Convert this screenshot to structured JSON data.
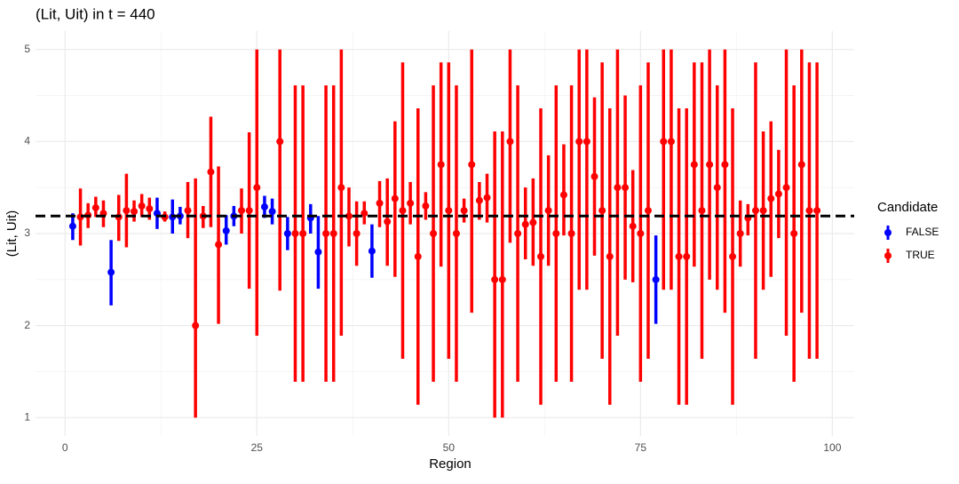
{
  "chart_data": {
    "type": "errorbar",
    "title": "(Lit, Uit) in t = 440",
    "x_label": "Region",
    "y_label": "(Lit, Uit)",
    "legend_title": "Candidate",
    "legend_position": "right",
    "grid": true,
    "xlim": [
      -3.85,
      102.85
    ],
    "ylim": [
      0.8,
      5.2
    ],
    "xticks": [
      0,
      25,
      50,
      75,
      100
    ],
    "yticks": [
      1,
      2,
      3,
      4,
      5
    ],
    "hline": 3.19,
    "series": [
      {
        "name": "FALSE",
        "color": "#0000ff",
        "x": [
          1,
          6,
          12,
          14,
          15,
          21,
          22,
          26,
          27,
          29,
          32,
          33,
          40,
          77
        ],
        "values": [
          3.08,
          2.58,
          3.22,
          3.18,
          3.19,
          3.03,
          3.19,
          3.29,
          3.24,
          3.0,
          3.17,
          2.8,
          2.81,
          2.5
        ],
        "lower": [
          2.93,
          2.22,
          3.05,
          3.0,
          3.1,
          2.88,
          3.08,
          3.17,
          3.1,
          2.82,
          3.0,
          2.4,
          2.52,
          2.02
        ],
        "upper": [
          3.22,
          2.93,
          3.39,
          3.37,
          3.29,
          3.2,
          3.3,
          3.41,
          3.38,
          3.18,
          3.32,
          3.19,
          3.1,
          2.98
        ]
      },
      {
        "name": "TRUE",
        "color": "#ff0000",
        "x": [
          2,
          3,
          4,
          5,
          7,
          8,
          9,
          10,
          11,
          13,
          16,
          17,
          18,
          19,
          20,
          23,
          24,
          25,
          28,
          30,
          31,
          34,
          35,
          36,
          37,
          38,
          39,
          41,
          42,
          43,
          44,
          45,
          46,
          47,
          48,
          49,
          50,
          51,
          52,
          53,
          54,
          55,
          56,
          57,
          58,
          59,
          60,
          61,
          62,
          63,
          64,
          65,
          66,
          67,
          68,
          69,
          70,
          71,
          72,
          73,
          74,
          75,
          76,
          78,
          79,
          80,
          81,
          82,
          83,
          84,
          85,
          86,
          87,
          88,
          89,
          90,
          91,
          92,
          93,
          94,
          95,
          96,
          97,
          98
        ],
        "values": [
          3.18,
          3.2,
          3.28,
          3.22,
          3.18,
          3.25,
          3.24,
          3.3,
          3.27,
          3.18,
          3.25,
          2.0,
          3.19,
          3.67,
          2.88,
          3.25,
          3.25,
          3.5,
          4.0,
          3.0,
          3.0,
          3.0,
          3.0,
          3.5,
          3.19,
          3.0,
          3.22,
          3.33,
          3.13,
          3.38,
          3.25,
          3.33,
          2.75,
          3.3,
          3.0,
          3.75,
          3.25,
          3.0,
          3.25,
          3.75,
          3.36,
          3.39,
          2.5,
          2.5,
          4.0,
          3.0,
          3.1,
          3.12,
          2.75,
          3.25,
          3.0,
          3.42,
          3.0,
          4.0,
          4.0,
          3.62,
          3.25,
          2.75,
          3.5,
          3.5,
          3.08,
          3.0,
          3.25,
          4.0,
          4.0,
          2.75,
          2.75,
          3.75,
          3.25,
          3.75,
          3.5,
          3.75,
          2.75,
          3.0,
          3.17,
          3.25,
          3.25,
          3.38,
          3.43,
          3.5,
          3.0,
          3.75,
          3.25,
          3.25
        ],
        "lower": [
          2.87,
          3.06,
          3.18,
          3.07,
          2.92,
          2.85,
          3.13,
          3.18,
          3.15,
          3.13,
          2.95,
          1.0,
          3.06,
          3.07,
          2.02,
          3.0,
          2.4,
          1.89,
          2.38,
          1.39,
          1.39,
          1.39,
          1.39,
          1.89,
          2.86,
          2.65,
          3.1,
          3.07,
          2.65,
          2.53,
          1.64,
          3.1,
          1.14,
          3.15,
          1.39,
          2.64,
          1.64,
          1.39,
          3.12,
          2.14,
          3.15,
          3.12,
          1.0,
          1.0,
          2.9,
          1.39,
          2.72,
          2.65,
          1.14,
          2.65,
          1.39,
          2.98,
          1.39,
          2.39,
          2.39,
          2.76,
          1.64,
          1.14,
          1.89,
          2.5,
          2.47,
          1.39,
          1.64,
          2.39,
          2.39,
          1.14,
          1.14,
          2.64,
          1.64,
          2.5,
          2.39,
          2.14,
          1.14,
          2.64,
          2.98,
          1.64,
          2.39,
          2.53,
          2.95,
          1.89,
          1.39,
          2.14,
          1.64,
          1.64
        ],
        "upper": [
          3.49,
          3.33,
          3.4,
          3.36,
          3.42,
          3.65,
          3.36,
          3.43,
          3.39,
          3.24,
          3.56,
          3.6,
          3.3,
          4.27,
          3.73,
          3.49,
          4.1,
          5.0,
          5.0,
          4.61,
          4.61,
          4.61,
          4.61,
          5.0,
          3.5,
          3.35,
          3.35,
          3.57,
          3.6,
          4.22,
          4.86,
          3.56,
          4.36,
          3.45,
          4.61,
          4.86,
          4.86,
          4.61,
          3.38,
          5.0,
          3.56,
          3.65,
          4.11,
          4.11,
          5.0,
          4.61,
          3.5,
          3.6,
          4.36,
          3.85,
          4.61,
          3.97,
          4.61,
          5.0,
          5.0,
          4.48,
          4.86,
          4.36,
          5.0,
          4.5,
          3.69,
          4.61,
          4.86,
          5.0,
          5.0,
          4.36,
          4.36,
          4.86,
          4.86,
          5.0,
          4.61,
          5.0,
          4.36,
          3.36,
          3.32,
          4.86,
          4.11,
          4.22,
          3.91,
          5.0,
          4.61,
          5.0,
          4.86,
          4.86
        ]
      }
    ]
  }
}
